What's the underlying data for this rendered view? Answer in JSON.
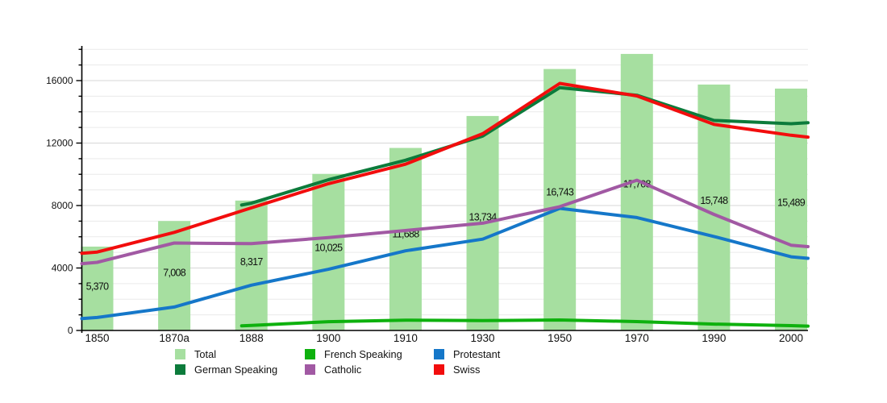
{
  "chart_data": {
    "type": "bar+line",
    "title": "",
    "xlabel": "",
    "ylabel": "",
    "categories": [
      "1850",
      "1870a",
      "1888",
      "1900",
      "1910",
      "1930",
      "1950",
      "1970",
      "1990",
      "2000"
    ],
    "y_axis": {
      "min": 0,
      "max": 18000,
      "minor_step": 1000,
      "labeled_ticks": [
        {
          "value": 0,
          "label": "0"
        },
        {
          "value": 4000,
          "label": "4000"
        },
        {
          "value": 8000,
          "label": "8000"
        },
        {
          "value": 12000,
          "label": "12000"
        },
        {
          "value": 16000,
          "label": "16000"
        }
      ],
      "grid": true
    },
    "bar_series": {
      "name": "Total",
      "color": "#a6dfa0",
      "values": [
        5370,
        7008,
        8317,
        10025,
        11688,
        13734,
        16743,
        17708,
        15748,
        15489
      ],
      "labels": [
        "5,370",
        "7,008",
        "8,317",
        "10,025",
        "11,688",
        "13,734",
        "16,743",
        "17,708",
        "15,748",
        "15,489"
      ]
    },
    "line_series": [
      {
        "name": "French Speaking",
        "color": "#0eb10e",
        "values": [
          null,
          null,
          320,
          560,
          660,
          630,
          670,
          570,
          410,
          310
        ],
        "edge_start": 300,
        "edge_end": 280
      },
      {
        "name": "German Speaking",
        "color": "#0c7b3b",
        "values": [
          null,
          null,
          8150,
          9650,
          10900,
          12450,
          15550,
          15060,
          13450,
          13240
        ],
        "edge_start": 8030,
        "edge_end": 13300
      },
      {
        "name": "Protestant",
        "color": "#1577c9",
        "values": [
          830,
          1500,
          2900,
          3920,
          5100,
          5850,
          7820,
          7230,
          6020,
          4720
        ],
        "edge_start": 760,
        "edge_end": 4620
      },
      {
        "name": "Catholic",
        "color": "#a159a3",
        "values": [
          4360,
          5600,
          5560,
          5950,
          6400,
          6870,
          7930,
          9620,
          7430,
          5460
        ],
        "edge_start": 4280,
        "edge_end": 5370
      },
      {
        "name": "Swiss",
        "color": "#f20d0d",
        "values": [
          5020,
          6280,
          7850,
          9400,
          10650,
          12600,
          15820,
          15020,
          13200,
          12500
        ],
        "edge_start": 4940,
        "edge_end": 12380
      }
    ],
    "legend": {
      "position": "bottom",
      "entries": [
        {
          "label": "Total",
          "color": "#a6dfa0"
        },
        {
          "label": "German Speaking",
          "color": "#0c7b3b"
        },
        {
          "label": "French Speaking",
          "color": "#0eb10e"
        },
        {
          "label": "Catholic",
          "color": "#a159a3"
        },
        {
          "label": "Protestant",
          "color": "#1577c9"
        },
        {
          "label": "Swiss",
          "color": "#f20d0d"
        }
      ]
    }
  }
}
